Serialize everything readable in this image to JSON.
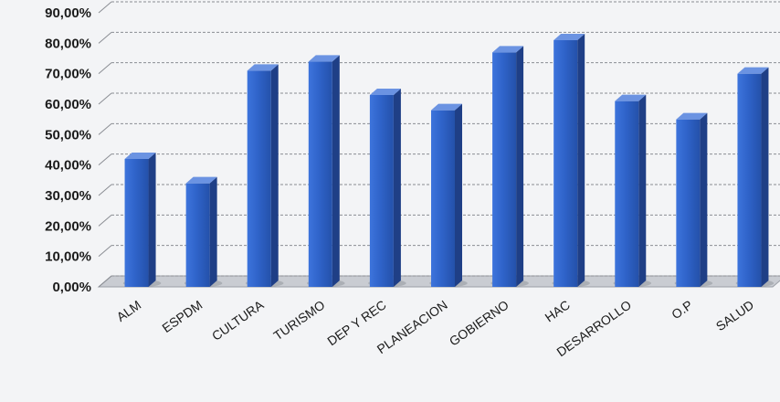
{
  "chart_data": {
    "type": "bar",
    "title": "",
    "xlabel": "",
    "ylabel": "",
    "categories": [
      "ALM",
      "ESPDM",
      "CULTURA",
      "TURISMO",
      "DEP Y REC",
      "PLANEACION",
      "GOBIERNO",
      "HAC",
      "DESARROLLO",
      "O.P",
      "SALUD"
    ],
    "values": [
      42,
      34,
      71,
      74,
      63,
      58,
      77,
      81,
      61,
      55,
      70
    ],
    "ylim": [
      0,
      90
    ],
    "yticks": [
      "0,00%",
      "10,00%",
      "20,00%",
      "30,00%",
      "40,00%",
      "50,00%",
      "60,00%",
      "70,00%",
      "80,00%",
      "90,00%"
    ],
    "grid": true,
    "legend": "none",
    "bar_style": "3d-column",
    "colors": {
      "bar_front": "#2f63c9",
      "bar_side": "#1f3f86",
      "bar_top": "#6b93e2",
      "floor": "#c9ccd2"
    }
  }
}
